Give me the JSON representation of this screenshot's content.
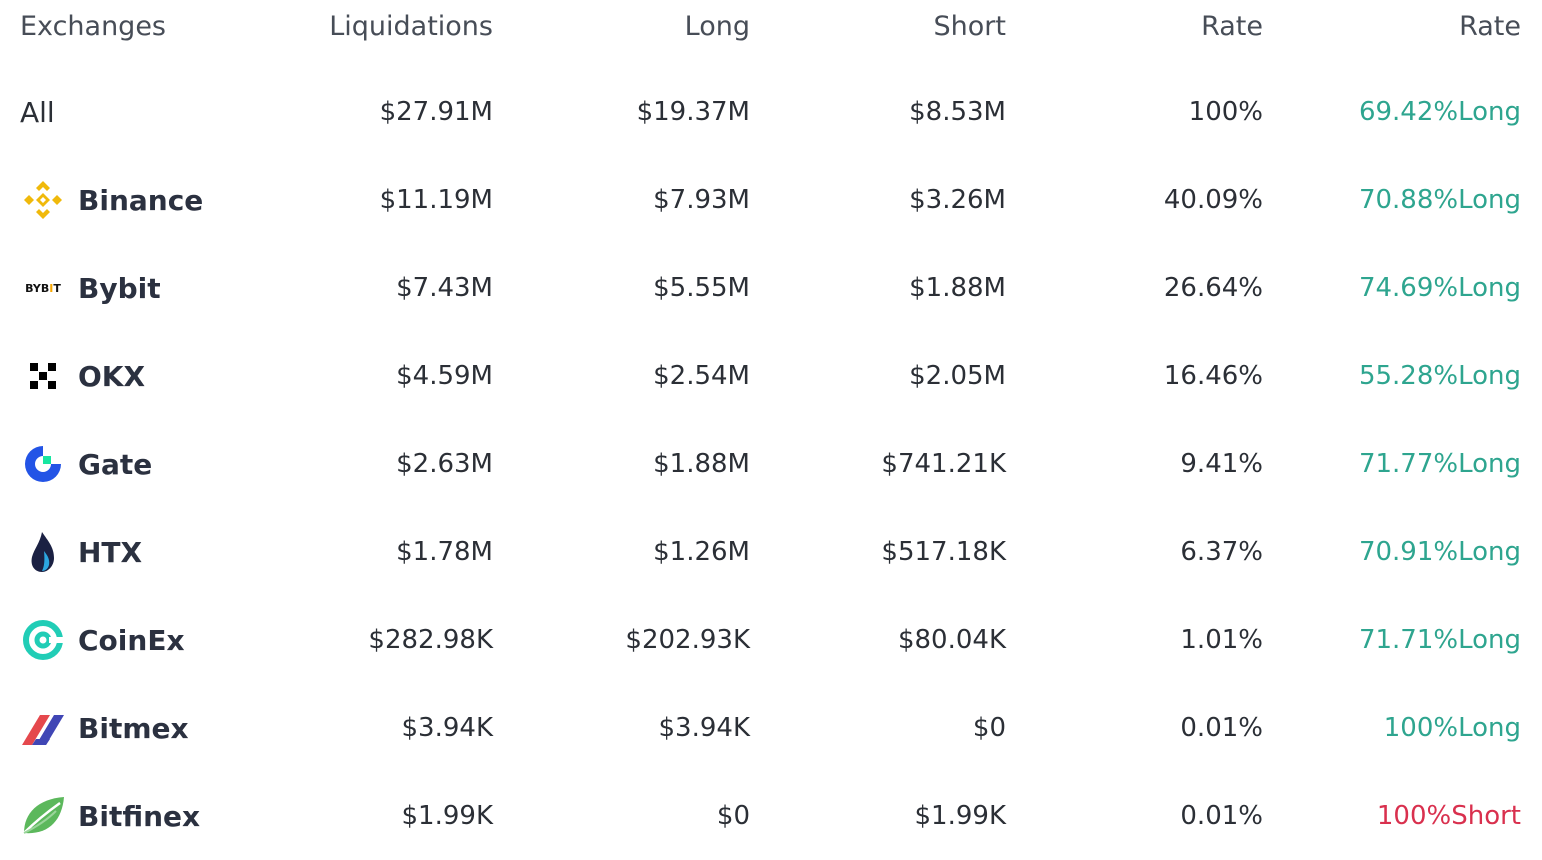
{
  "header": {
    "exchanges": "Exchanges",
    "liquidations": "Liquidations",
    "long": "Long",
    "short": "Short",
    "rate": "Rate",
    "ratio": "Rate"
  },
  "colors": {
    "long": "#2ea58f",
    "short": "#d9304e"
  },
  "rows": [
    {
      "name": "All",
      "liquidations": "$27.91M",
      "long": "$19.37M",
      "short": "$8.53M",
      "rate": "100%",
      "ratio": "69.42%Long",
      "side": "long"
    },
    {
      "name": "Binance",
      "icon": "binance-logo-icon",
      "liquidations": "$11.19M",
      "long": "$7.93M",
      "short": "$3.26M",
      "rate": "40.09%",
      "ratio": "70.88%Long",
      "side": "long"
    },
    {
      "name": "Bybit",
      "icon": "bybit-logo-icon",
      "logo_text": "BYBIT",
      "liquidations": "$7.43M",
      "long": "$5.55M",
      "short": "$1.88M",
      "rate": "26.64%",
      "ratio": "74.69%Long",
      "side": "long"
    },
    {
      "name": "OKX",
      "icon": "okx-logo-icon",
      "liquidations": "$4.59M",
      "long": "$2.54M",
      "short": "$2.05M",
      "rate": "16.46%",
      "ratio": "55.28%Long",
      "side": "long"
    },
    {
      "name": "Gate",
      "icon": "gate-logo-icon",
      "liquidations": "$2.63M",
      "long": "$1.88M",
      "short": "$741.21K",
      "rate": "9.41%",
      "ratio": "71.77%Long",
      "side": "long"
    },
    {
      "name": "HTX",
      "icon": "htx-logo-icon",
      "liquidations": "$1.78M",
      "long": "$1.26M",
      "short": "$517.18K",
      "rate": "6.37%",
      "ratio": "70.91%Long",
      "side": "long"
    },
    {
      "name": "CoinEx",
      "icon": "coinex-logo-icon",
      "liquidations": "$282.98K",
      "long": "$202.93K",
      "short": "$80.04K",
      "rate": "1.01%",
      "ratio": "71.71%Long",
      "side": "long"
    },
    {
      "name": "Bitmex",
      "icon": "bitmex-logo-icon",
      "liquidations": "$3.94K",
      "long": "$3.94K",
      "short": "$0",
      "rate": "0.01%",
      "ratio": "100%Long",
      "side": "long"
    },
    {
      "name": "Bitfinex",
      "icon": "bitfinex-logo-icon",
      "liquidations": "$1.99K",
      "long": "$0",
      "short": "$1.99K",
      "rate": "0.01%",
      "ratio": "100%Short",
      "side": "short"
    }
  ]
}
